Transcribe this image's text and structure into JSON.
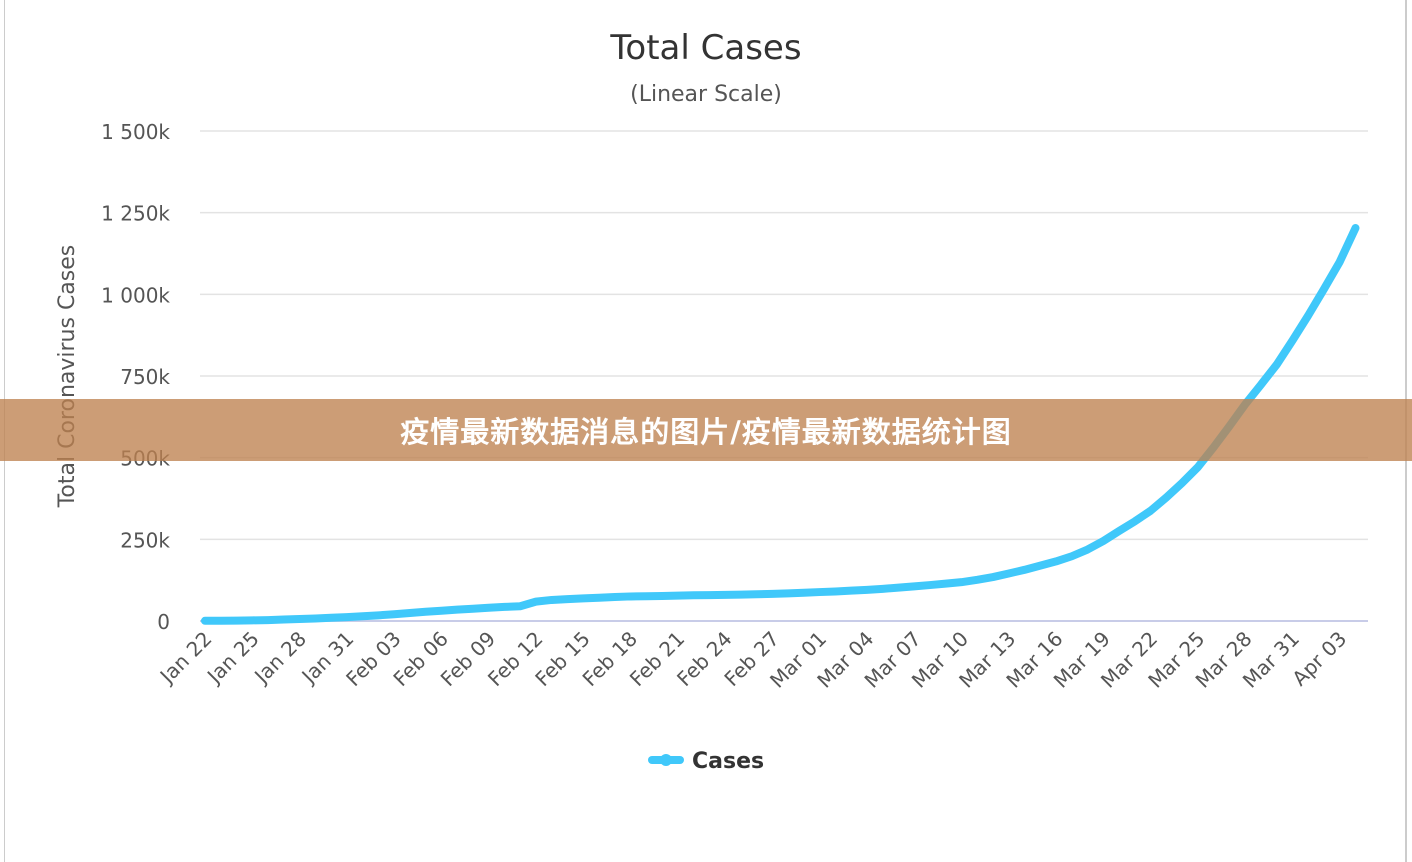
{
  "chart_data": {
    "type": "line",
    "title": "Total Cases",
    "subtitle": "(Linear Scale)",
    "ylabel": "Total Coronavirus Cases",
    "xlabel": "",
    "ylim": [
      0,
      1500000
    ],
    "yticks": [
      0,
      250000,
      500000,
      750000,
      1000000,
      1250000,
      1500000
    ],
    "ytick_labels": [
      "0",
      "250k",
      "500k",
      "750k",
      "1 000k",
      "1 250k",
      "1 500k"
    ],
    "xtick_labels": [
      "Jan 22",
      "Jan 25",
      "Jan 28",
      "Jan 31",
      "Feb 03",
      "Feb 06",
      "Feb 09",
      "Feb 12",
      "Feb 15",
      "Feb 18",
      "Feb 21",
      "Feb 24",
      "Feb 27",
      "Mar 01",
      "Mar 04",
      "Mar 07",
      "Mar 10",
      "Mar 13",
      "Mar 16",
      "Mar 19",
      "Mar 22",
      "Mar 25",
      "Mar 28",
      "Mar 31",
      "Apr 03"
    ],
    "x_start": "2020-01-22",
    "x_end": "2020-04-04",
    "grid": true,
    "legend": "bottom-center",
    "series": [
      {
        "name": "Cases",
        "color": "#40c8fa",
        "values": [
          580,
          845,
          1317,
          2015,
          2800,
          4581,
          6058,
          7813,
          9823,
          11948,
          14551,
          17389,
          20628,
          24553,
          28276,
          31439,
          34876,
          37552,
          40553,
          43099,
          45134,
          59287,
          64438,
          67100,
          69197,
          71329,
          73332,
          75184,
          75700,
          76677,
          77673,
          78651,
          79205,
          80087,
          80828,
          81820,
          83112,
          84615,
          86604,
          88585,
          90443,
          93016,
          95314,
          98425,
          102050,
          106099,
          109991,
          114381,
          118948,
          126214,
          134576,
          145483,
          156653,
          169593,
          182490,
          198238,
          218822,
          244933,
          275597,
          305036,
          337489,
          378287,
          422574,
          471035,
          531865,
          596366,
          663127,
          723390,
          784716,
          858371,
          935197,
          1016128,
          1099388,
          1203000
        ]
      }
    ]
  },
  "banner": {
    "text": "疫情最新数据消息的图片/疫情最新数据统计图",
    "color": "#be8250"
  }
}
